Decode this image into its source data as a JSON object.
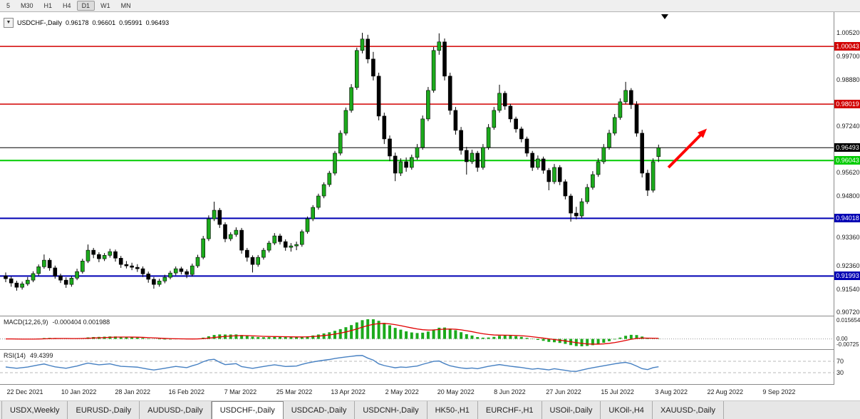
{
  "toolbar": {
    "periods": [
      {
        "label": "5",
        "active": false
      },
      {
        "label": "M30",
        "active": false
      },
      {
        "label": "H1",
        "active": false
      },
      {
        "label": "H4",
        "active": false
      },
      {
        "label": "D1",
        "active": true
      },
      {
        "label": "W1",
        "active": false
      },
      {
        "label": "MN",
        "active": false
      }
    ]
  },
  "quote_bar": {
    "dropdown_icon": "▼",
    "symbol": "USDCHF-,Daily",
    "open": "0.96178",
    "high": "0.96601",
    "low": "0.95991",
    "close": "0.96493"
  },
  "colors": {
    "candle_up": "#1CAA1C",
    "candle_down": "#000000",
    "macd_histogram": "#1CAA1C",
    "macd_signal": "#E00000",
    "rsi_line": "#4680C2",
    "arrow": "#FF0000",
    "level_red": "#D20000",
    "level_green": "#00CC00",
    "level_navy": "#0000B4",
    "level_black": "#000000"
  },
  "chart_data": {
    "type": "candlestick",
    "symbol": "USDCHF-",
    "timeframe": "Daily",
    "ylim": [
      0.90605,
      1.01244
    ],
    "y_ticks": [
      {
        "price": 1.0052,
        "label": "1.00520"
      },
      {
        "price": 0.997,
        "label": "0.99700"
      },
      {
        "price": 0.9888,
        "label": "0.98880"
      },
      {
        "price": 0.9724,
        "label": "0.97240"
      },
      {
        "price": 0.9562,
        "label": "0.95620"
      },
      {
        "price": 0.948,
        "label": "0.94800"
      },
      {
        "price": 0.9336,
        "label": "0.93360"
      },
      {
        "price": 0.9236,
        "label": "0.92360"
      },
      {
        "price": 0.9154,
        "label": "0.91540"
      },
      {
        "price": 0.9072,
        "label": "0.90720"
      }
    ],
    "levels": [
      {
        "price": 1.00043,
        "label": "1.00043",
        "color": "#D20000",
        "width": 1.5,
        "text": "#ffffff"
      },
      {
        "price": 0.98019,
        "label": "0.98019",
        "color": "#D20000",
        "width": 1.5,
        "text": "#ffffff"
      },
      {
        "price": 0.96493,
        "label": "0.96493",
        "color": "#000000",
        "width": 1,
        "text": "#ffffff"
      },
      {
        "price": 0.96043,
        "label": "0.96043",
        "color": "#00CC00",
        "width": 2,
        "text": "#ffffff"
      },
      {
        "price": 0.94018,
        "label": "0.94018",
        "color": "#0000B4",
        "width": 2,
        "text": "#ffffff"
      },
      {
        "price": 0.91993,
        "label": "0.91993",
        "color": "#0000B4",
        "width": 2,
        "text": "#ffffff"
      }
    ],
    "x_labels": [
      "22 Dec 2021",
      "10 Jan 2022",
      "28 Jan 2022",
      "16 Feb 2022",
      "7 Mar 2022",
      "25 Mar 2022",
      "13 Apr 2022",
      "2 May 2022",
      "20 May 2022",
      "8 Jun 2022",
      "27 Jun 2022",
      "15 Jul 2022",
      "3 Aug 2022",
      "22 Aug 2022",
      "9 Sep 2022"
    ],
    "candles": [
      [
        0.92,
        0.9212,
        0.9178,
        0.919
      ],
      [
        0.919,
        0.9198,
        0.9162,
        0.9175
      ],
      [
        0.9175,
        0.9183,
        0.9148,
        0.916
      ],
      [
        0.916,
        0.918,
        0.9152,
        0.9172
      ],
      [
        0.9172,
        0.9196,
        0.9165,
        0.9185
      ],
      [
        0.9185,
        0.9216,
        0.9178,
        0.9208
      ],
      [
        0.9208,
        0.924,
        0.92,
        0.9232
      ],
      [
        0.9232,
        0.9275,
        0.9225,
        0.9255
      ],
      [
        0.9255,
        0.9262,
        0.9218,
        0.9228
      ],
      [
        0.9228,
        0.9236,
        0.919,
        0.92
      ],
      [
        0.92,
        0.9208,
        0.9175,
        0.9185
      ],
      [
        0.9185,
        0.9195,
        0.9158,
        0.917
      ],
      [
        0.917,
        0.92,
        0.9162,
        0.9192
      ],
      [
        0.9192,
        0.9225,
        0.9185,
        0.9215
      ],
      [
        0.9215,
        0.926,
        0.9208,
        0.9252
      ],
      [
        0.9252,
        0.931,
        0.9245,
        0.929
      ],
      [
        0.929,
        0.9298,
        0.9262,
        0.9275
      ],
      [
        0.9275,
        0.9283,
        0.9248,
        0.926
      ],
      [
        0.926,
        0.928,
        0.9252,
        0.9272
      ],
      [
        0.9272,
        0.9295,
        0.9264,
        0.9285
      ],
      [
        0.9285,
        0.9292,
        0.925,
        0.9262
      ],
      [
        0.9262,
        0.927,
        0.9228,
        0.924
      ],
      [
        0.924,
        0.9252,
        0.9226,
        0.9235
      ],
      [
        0.9235,
        0.9246,
        0.922,
        0.923
      ],
      [
        0.923,
        0.9241,
        0.9214,
        0.9225
      ],
      [
        0.9225,
        0.9233,
        0.9196,
        0.9207
      ],
      [
        0.9207,
        0.9215,
        0.9176,
        0.9188
      ],
      [
        0.9188,
        0.9196,
        0.9155,
        0.917
      ],
      [
        0.917,
        0.919,
        0.9162,
        0.9182
      ],
      [
        0.9182,
        0.9204,
        0.9174,
        0.9195
      ],
      [
        0.9195,
        0.9218,
        0.9188,
        0.921
      ],
      [
        0.921,
        0.9233,
        0.9202,
        0.9225
      ],
      [
        0.9225,
        0.9232,
        0.9205,
        0.9215
      ],
      [
        0.9215,
        0.9223,
        0.9192,
        0.9205
      ],
      [
        0.9205,
        0.9243,
        0.9198,
        0.9235
      ],
      [
        0.9235,
        0.9274,
        0.9228,
        0.9265
      ],
      [
        0.9265,
        0.934,
        0.9258,
        0.933
      ],
      [
        0.933,
        0.9412,
        0.9322,
        0.94
      ],
      [
        0.94,
        0.946,
        0.9392,
        0.943
      ],
      [
        0.943,
        0.9438,
        0.9368,
        0.938
      ],
      [
        0.938,
        0.9388,
        0.9318,
        0.933
      ],
      [
        0.933,
        0.9353,
        0.9322,
        0.9345
      ],
      [
        0.9345,
        0.937,
        0.9337,
        0.936
      ],
      [
        0.936,
        0.9368,
        0.9278,
        0.929
      ],
      [
        0.929,
        0.9298,
        0.925,
        0.9265
      ],
      [
        0.9265,
        0.9272,
        0.9212,
        0.924
      ],
      [
        0.924,
        0.9273,
        0.9232,
        0.9265
      ],
      [
        0.9265,
        0.9298,
        0.9257,
        0.929
      ],
      [
        0.929,
        0.9323,
        0.9282,
        0.9315
      ],
      [
        0.9315,
        0.935,
        0.9308,
        0.934
      ],
      [
        0.934,
        0.9348,
        0.931,
        0.932
      ],
      [
        0.932,
        0.9328,
        0.9288,
        0.93
      ],
      [
        0.93,
        0.9315,
        0.9285,
        0.9305
      ],
      [
        0.9305,
        0.932,
        0.929,
        0.931
      ],
      [
        0.931,
        0.9362,
        0.9302,
        0.9355
      ],
      [
        0.9355,
        0.9408,
        0.9348,
        0.94
      ],
      [
        0.94,
        0.9448,
        0.9392,
        0.944
      ],
      [
        0.944,
        0.9488,
        0.9432,
        0.948
      ],
      [
        0.948,
        0.9528,
        0.9472,
        0.952
      ],
      [
        0.952,
        0.9568,
        0.9512,
        0.956
      ],
      [
        0.956,
        0.9638,
        0.9552,
        0.963
      ],
      [
        0.963,
        0.971,
        0.9622,
        0.97
      ],
      [
        0.97,
        0.979,
        0.9692,
        0.978
      ],
      [
        0.978,
        0.9872,
        0.9772,
        0.986
      ],
      [
        0.986,
        1.0,
        0.9852,
        0.999
      ],
      [
        0.999,
        1.0052,
        0.998,
        1.003
      ],
      [
        1.003,
        1.0045,
        0.9945,
        0.996
      ],
      [
        0.996,
        0.9985,
        0.9885,
        0.99
      ],
      [
        0.99,
        0.9912,
        0.9745,
        0.976
      ],
      [
        0.976,
        0.9772,
        0.9662,
        0.968
      ],
      [
        0.968,
        0.9692,
        0.9602,
        0.962
      ],
      [
        0.962,
        0.9632,
        0.9532,
        0.956
      ],
      [
        0.956,
        0.9612,
        0.955,
        0.96
      ],
      [
        0.96,
        0.9615,
        0.9565,
        0.958
      ],
      [
        0.958,
        0.9625,
        0.9572,
        0.9615
      ],
      [
        0.9615,
        0.9662,
        0.9607,
        0.965
      ],
      [
        0.965,
        0.9762,
        0.9642,
        0.975
      ],
      [
        0.975,
        0.9862,
        0.9742,
        0.985
      ],
      [
        0.985,
        1.0002,
        0.9842,
        0.999
      ],
      [
        0.999,
        1.005,
        0.9975,
        1.002
      ],
      [
        1.002,
        1.0032,
        0.9885,
        0.99
      ],
      [
        0.99,
        0.9912,
        0.9765,
        0.978
      ],
      [
        0.978,
        0.9792,
        0.9695,
        0.971
      ],
      [
        0.971,
        0.9722,
        0.9625,
        0.964
      ],
      [
        0.964,
        0.9652,
        0.9555,
        0.96
      ],
      [
        0.96,
        0.9642,
        0.9592,
        0.963
      ],
      [
        0.963,
        0.9638,
        0.9565,
        0.958
      ],
      [
        0.958,
        0.9662,
        0.9572,
        0.965
      ],
      [
        0.965,
        0.9732,
        0.9642,
        0.972
      ],
      [
        0.972,
        0.9792,
        0.9712,
        0.978
      ],
      [
        0.978,
        0.987,
        0.9772,
        0.984
      ],
      [
        0.984,
        0.9848,
        0.9782,
        0.9795
      ],
      [
        0.9795,
        0.9803,
        0.9738,
        0.975
      ],
      [
        0.975,
        0.9758,
        0.9702,
        0.9715
      ],
      [
        0.9715,
        0.9723,
        0.9668,
        0.968
      ],
      [
        0.968,
        0.9688,
        0.9618,
        0.963
      ],
      [
        0.963,
        0.9638,
        0.9568,
        0.958
      ],
      [
        0.958,
        0.9622,
        0.9572,
        0.961
      ],
      [
        0.961,
        0.9618,
        0.9558,
        0.957
      ],
      [
        0.957,
        0.9578,
        0.95,
        0.953
      ],
      [
        0.953,
        0.9592,
        0.9522,
        0.958
      ],
      [
        0.958,
        0.9588,
        0.9518,
        0.953
      ],
      [
        0.953,
        0.9538,
        0.9468,
        0.948
      ],
      [
        0.948,
        0.9488,
        0.939,
        0.942
      ],
      [
        0.942,
        0.9442,
        0.9398,
        0.941
      ],
      [
        0.941,
        0.9472,
        0.9402,
        0.946
      ],
      [
        0.946,
        0.9522,
        0.9452,
        0.951
      ],
      [
        0.951,
        0.9567,
        0.9502,
        0.9555
      ],
      [
        0.9555,
        0.9612,
        0.9547,
        0.96
      ],
      [
        0.96,
        0.9662,
        0.9592,
        0.965
      ],
      [
        0.965,
        0.9712,
        0.9642,
        0.97
      ],
      [
        0.97,
        0.9767,
        0.9692,
        0.9755
      ],
      [
        0.9755,
        0.9822,
        0.9747,
        0.981
      ],
      [
        0.981,
        0.988,
        0.9802,
        0.985
      ],
      [
        0.985,
        0.9858,
        0.9785,
        0.98
      ],
      [
        0.98,
        0.9812,
        0.9688,
        0.97
      ],
      [
        0.97,
        0.9712,
        0.9545,
        0.956
      ],
      [
        0.956,
        0.9572,
        0.948,
        0.95
      ],
      [
        0.95,
        0.9612,
        0.9492,
        0.96
      ],
      [
        0.9618,
        0.966,
        0.9599,
        0.9649
      ]
    ],
    "arrow": {
      "from": {
        "index": 120.8,
        "price": 0.958
      },
      "to": {
        "index": 127.8,
        "price": 0.9716
      },
      "color": "#FF0000"
    }
  },
  "indicators": {
    "macd": {
      "name": "MACD(12,26,9)",
      "values": "-0.000404 0.001988",
      "params": {
        "fast": 12,
        "slow": 26,
        "signal": 9
      },
      "axis": {
        "max": "0.015654",
        "zero": "0.00",
        "min": "-0.00725"
      }
    },
    "rsi": {
      "name": "RSI(14)",
      "value": "49.4399",
      "period": 14,
      "levels": [
        70,
        30
      ]
    }
  },
  "tabs": [
    {
      "label": "USDX,Weekly",
      "active": false
    },
    {
      "label": "EURUSD-,Daily",
      "active": false
    },
    {
      "label": "AUDUSD-,Daily",
      "active": false
    },
    {
      "label": "USDCHF-,Daily",
      "active": true
    },
    {
      "label": "USDCAD-,Daily",
      "active": false
    },
    {
      "label": "USDCNH-,Daily",
      "active": false
    },
    {
      "label": "HK50-,H1",
      "active": false
    },
    {
      "label": "EURCHF-,H1",
      "active": false
    },
    {
      "label": "USOil-,Daily",
      "active": false
    },
    {
      "label": "UKOil-,H4",
      "active": false
    },
    {
      "label": "XAUUSD-,Daily",
      "active": false
    }
  ]
}
